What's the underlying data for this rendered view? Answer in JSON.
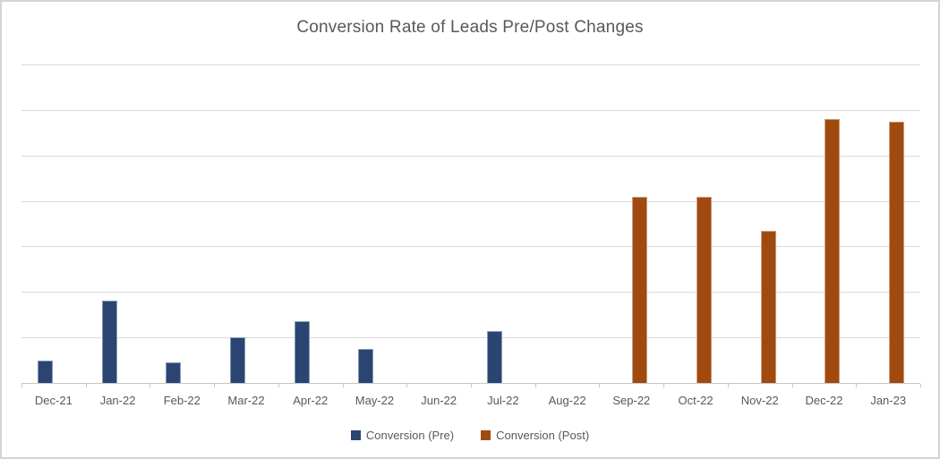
{
  "chart_data": {
    "type": "bar",
    "title": "Conversion Rate of Leads Pre/Post Changes",
    "categories": [
      "Dec-21",
      "Jan-22",
      "Feb-22",
      "Mar-22",
      "Apr-22",
      "May-22",
      "Jun-22",
      "Jul-22",
      "Aug-22",
      "Sep-22",
      "Oct-22",
      "Nov-22",
      "Dec-22",
      "Jan-23"
    ],
    "series": [
      {
        "name": "Conversion (Pre)",
        "color": "#2B4573",
        "values": [
          0.5,
          1.8,
          0.45,
          1.0,
          1.35,
          0.75,
          0,
          1.15,
          0,
          0,
          0,
          0,
          0,
          0
        ]
      },
      {
        "name": "Conversion (Post)",
        "color": "#A04A10",
        "values": [
          0,
          0,
          0,
          0,
          0,
          0,
          0,
          0,
          0,
          4.1,
          4.1,
          3.35,
          5.8,
          5.75
        ]
      }
    ],
    "xlabel": "",
    "ylabel": "",
    "ylim": [
      0,
      7
    ],
    "y_tick_labels_visible": false,
    "gridline_values": [
      1,
      2,
      3,
      4,
      5,
      6,
      7
    ],
    "grid": "horizontal",
    "legend_position": "bottom",
    "note": "No y-axis tick labels shown; values estimated in gridline units (1 unit per gridline interval)."
  },
  "colors": {
    "title_text": "#595959",
    "axis_text": "#595959",
    "gridline": "#D9D9D9",
    "axis_line": "#C6C6C6",
    "chart_border": "#D4D4D4",
    "background": "#FFFFFF"
  }
}
